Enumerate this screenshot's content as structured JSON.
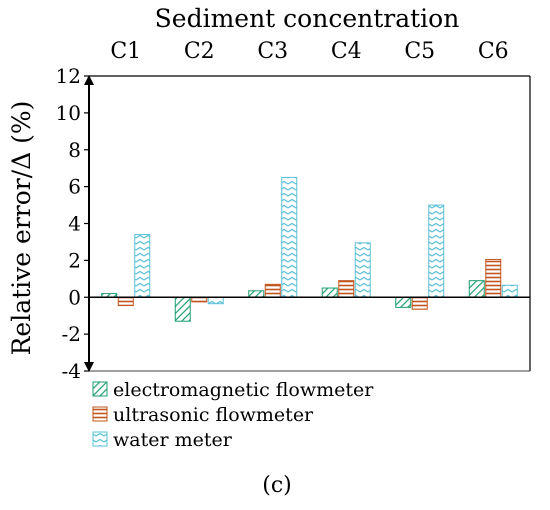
{
  "chart_data": {
    "type": "bar",
    "title": "Sediment concentration",
    "ylabel": "Relative error/Δ (%)",
    "xlabel": "",
    "categories": [
      "C1",
      "C2",
      "C3",
      "C4",
      "C5",
      "C6"
    ],
    "ylim": [
      -4,
      12
    ],
    "yticks": [
      -4,
      -2,
      0,
      2,
      4,
      6,
      8,
      10,
      12
    ],
    "grid": false,
    "legend_position": "bottom-left",
    "series": [
      {
        "name": "electromagnetic flowmeter",
        "color": "#1e9e70",
        "pattern": "diagonal-hatch",
        "values": [
          0.2,
          -1.3,
          0.35,
          0.5,
          -0.55,
          0.9
        ]
      },
      {
        "name": "ultrasonic flowmeter",
        "color": "#c2541e",
        "pattern": "horizontal-lines",
        "values": [
          -0.45,
          -0.25,
          0.7,
          0.9,
          -0.65,
          2.05
        ]
      },
      {
        "name": "water meter",
        "color": "#5bc0d6",
        "pattern": "zigzag",
        "values": [
          3.4,
          -0.35,
          6.5,
          2.95,
          5.0,
          0.65
        ]
      }
    ]
  },
  "caption": "(c)"
}
